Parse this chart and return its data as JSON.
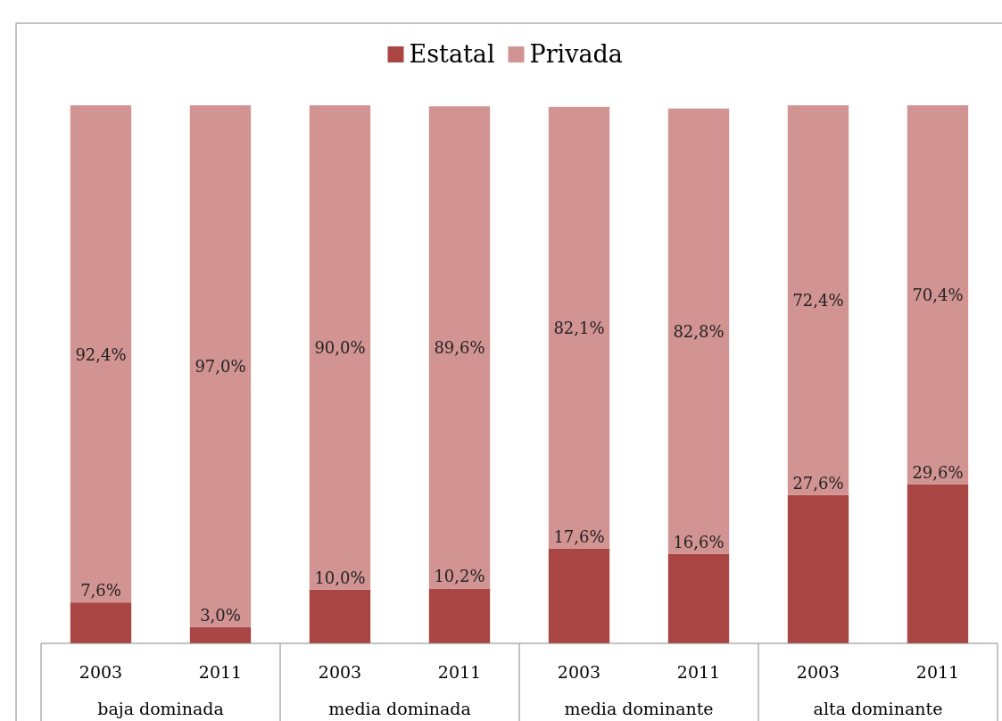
{
  "chart_data": {
    "type": "bar",
    "stacked": true,
    "legend": "top",
    "categories": [
      "2003",
      "2011",
      "2003",
      "2011",
      "2003",
      "2011",
      "2003",
      "2011"
    ],
    "annotations": [
      "baja dominada",
      "media dominada",
      "media dominante",
      "alta dominante"
    ],
    "series": [
      {
        "name": "Estatal",
        "color": "#a94542",
        "values": [
          7.6,
          3.0,
          10.0,
          10.2,
          17.6,
          16.6,
          27.6,
          29.6
        ],
        "value_labels": [
          "7,6%",
          "3,0%",
          "10,0%",
          "10,2%",
          "17,6%",
          "16,6%",
          "27,6%",
          "29,6%"
        ]
      },
      {
        "name": "Privada",
        "color": "#d29492",
        "values": [
          92.4,
          97.0,
          90.0,
          89.6,
          82.1,
          82.8,
          72.4,
          70.4
        ],
        "value_labels": [
          "92,4%",
          "97,0%",
          "90,0%",
          "89,6%",
          "82,1%",
          "82,8%",
          "72,4%",
          "70,4%"
        ]
      }
    ]
  }
}
